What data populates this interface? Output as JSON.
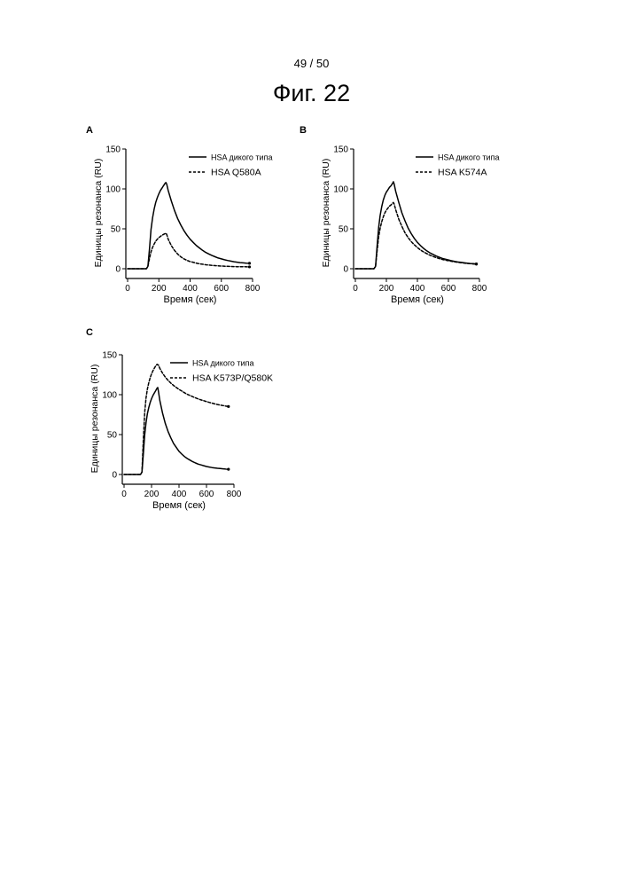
{
  "page": {
    "page_number": "49 / 50",
    "figure_title": "Фиг. 22"
  },
  "chart_data": [
    {
      "panel": "A",
      "type": "line",
      "xlabel": "Время (сек)",
      "ylabel": "Единицы резонанса (RU)",
      "xlim": [
        0,
        800
      ],
      "ylim": [
        -10,
        150
      ],
      "xticks": [
        0,
        200,
        400,
        600,
        800
      ],
      "yticks": [
        0,
        50,
        100,
        150
      ],
      "grid": false,
      "legend_position": "top-right",
      "series": [
        {
          "name": "HSA дикого типа",
          "style": "solid",
          "x": [
            0,
            50,
            100,
            120,
            130,
            140,
            150,
            160,
            170,
            180,
            190,
            200,
            210,
            220,
            230,
            240,
            245,
            250,
            260,
            280,
            300,
            320,
            340,
            360,
            380,
            400,
            420,
            440,
            460,
            480,
            500,
            520,
            540,
            560,
            580,
            600,
            620,
            640,
            660,
            680,
            700,
            720,
            740,
            760,
            780
          ],
          "y": [
            0,
            0,
            0,
            0,
            3,
            25,
            49,
            64,
            75,
            83,
            89,
            94,
            98,
            101,
            104,
            107,
            108,
            106,
            98,
            85,
            73,
            63,
            55,
            48,
            42,
            37,
            33,
            29,
            26,
            23,
            20.5,
            18.5,
            16.5,
            15,
            13.5,
            12.3,
            11.2,
            10.3,
            9.5,
            8.8,
            8.2,
            7.7,
            7.3,
            7,
            6.8
          ]
        },
        {
          "name": "HSA Q580A",
          "style": "dashed",
          "x": [
            0,
            50,
            100,
            120,
            130,
            140,
            150,
            160,
            170,
            180,
            190,
            200,
            210,
            220,
            230,
            240,
            245,
            250,
            260,
            280,
            300,
            320,
            340,
            360,
            380,
            400,
            450,
            500,
            550,
            600,
            650,
            700,
            750,
            780
          ],
          "y": [
            0,
            0,
            0,
            0,
            3,
            13,
            21,
            27,
            31,
            34.5,
            37,
            39,
            40.5,
            42,
            43,
            44,
            44.5,
            43,
            37,
            29,
            23,
            18.5,
            15,
            12.5,
            10.5,
            9,
            6.5,
            5,
            4,
            3.3,
            2.9,
            2.6,
            2.4,
            2.3
          ]
        }
      ]
    },
    {
      "panel": "B",
      "type": "line",
      "xlabel": "Время (сек)",
      "ylabel": "Единицы резонанса (RU)",
      "xlim": [
        0,
        800
      ],
      "ylim": [
        -10,
        150
      ],
      "xticks": [
        0,
        200,
        400,
        600,
        800
      ],
      "yticks": [
        0,
        50,
        100,
        150
      ],
      "grid": false,
      "legend_position": "top-right",
      "series": [
        {
          "name": "HSA дикого типа",
          "style": "solid",
          "x": [
            0,
            50,
            100,
            120,
            130,
            140,
            150,
            160,
            170,
            180,
            190,
            200,
            210,
            220,
            230,
            240,
            245,
            250,
            260,
            280,
            300,
            320,
            340,
            360,
            380,
            400,
            420,
            440,
            460,
            480,
            500,
            520,
            540,
            560,
            580,
            600,
            620,
            640,
            660,
            680,
            700,
            720,
            740,
            760,
            780
          ],
          "y": [
            0,
            0,
            0,
            0,
            3,
            28,
            52,
            67,
            78,
            86,
            92,
            96,
            99,
            102,
            104,
            107,
            109,
            106,
            97,
            83,
            70,
            60,
            51,
            44,
            38,
            33,
            29,
            25.5,
            22.5,
            20,
            18,
            16,
            14.5,
            13,
            12,
            11,
            10,
            9.2,
            8.5,
            8,
            7.5,
            7,
            6.6,
            6.3,
            6
          ]
        },
        {
          "name": "HSA K574A",
          "style": "dashed",
          "x": [
            0,
            50,
            100,
            120,
            130,
            140,
            150,
            160,
            170,
            180,
            190,
            200,
            210,
            220,
            230,
            240,
            245,
            250,
            260,
            280,
            300,
            320,
            340,
            360,
            380,
            400,
            420,
            440,
            460,
            480,
            500,
            520,
            540,
            560,
            580,
            600,
            620,
            640,
            660,
            680,
            700,
            720,
            740,
            760,
            780
          ],
          "y": [
            0,
            0,
            0,
            0,
            3,
            22,
            40,
            51,
            59,
            65,
            70,
            73.5,
            76,
            78.5,
            80,
            82,
            83,
            81,
            74,
            62,
            53,
            45,
            39,
            34,
            30,
            26.5,
            23.5,
            21,
            19,
            17,
            15.5,
            14,
            12.8,
            11.7,
            10.8,
            10,
            9.3,
            8.7,
            8.1,
            7.6,
            7.1,
            6.7,
            6.3,
            6,
            5.8
          ]
        }
      ]
    },
    {
      "panel": "C",
      "type": "line",
      "xlabel": "Время (сек)",
      "ylabel": "Единицы резонанса (RU)",
      "xlim": [
        0,
        800
      ],
      "ylim": [
        -10,
        150
      ],
      "xticks": [
        0,
        200,
        400,
        600,
        800
      ],
      "yticks": [
        0,
        50,
        100,
        150
      ],
      "grid": false,
      "legend_position": "top-right",
      "series": [
        {
          "name": "HSA дикого типа",
          "style": "solid",
          "x": [
            0,
            50,
            100,
            120,
            130,
            140,
            150,
            160,
            170,
            180,
            190,
            200,
            210,
            220,
            230,
            240,
            245,
            250,
            260,
            280,
            300,
            320,
            340,
            360,
            380,
            400,
            420,
            440,
            460,
            480,
            500,
            520,
            540,
            560,
            580,
            600,
            620,
            640,
            660,
            680,
            700,
            720,
            740,
            760
          ],
          "y": [
            0,
            0,
            0,
            0,
            3,
            25,
            50,
            65,
            76,
            84,
            90,
            95,
            99,
            102,
            105,
            108,
            109,
            104,
            93,
            77,
            64,
            54,
            46,
            39,
            34,
            29,
            25.5,
            22.5,
            20,
            18,
            16,
            14.5,
            13,
            12,
            11,
            10,
            9.3,
            8.7,
            8.2,
            7.8,
            7.4,
            7.1,
            6.8,
            6.5
          ]
        },
        {
          "name": "HSA K573P/Q580K",
          "style": "dashed",
          "x": [
            0,
            50,
            100,
            120,
            130,
            140,
            150,
            160,
            170,
            180,
            190,
            200,
            210,
            220,
            230,
            240,
            250,
            260,
            280,
            300,
            320,
            340,
            360,
            380,
            400,
            420,
            440,
            460,
            480,
            500,
            520,
            540,
            560,
            580,
            600,
            620,
            640,
            660,
            680,
            700,
            720,
            740,
            760
          ],
          "y": [
            0,
            0,
            0,
            0,
            3,
            42,
            78,
            96,
            107,
            115,
            121,
            126,
            130,
            133,
            136,
            138,
            137,
            133,
            127,
            122,
            118,
            114.5,
            111.5,
            109,
            106.5,
            104.5,
            102.5,
            100.5,
            99,
            97.5,
            96,
            94.7,
            93.5,
            92.4,
            91.3,
            90.3,
            89.4,
            88.5,
            87.7,
            87,
            86.3,
            85.7,
            85.2
          ]
        }
      ]
    }
  ]
}
